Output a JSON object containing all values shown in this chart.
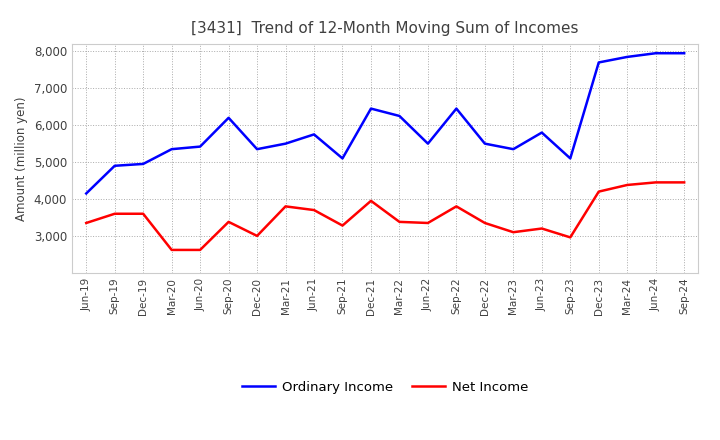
{
  "title": "[3431]  Trend of 12-Month Moving Sum of Incomes",
  "ylabel": "Amount (million yen)",
  "x_labels": [
    "Jun-19",
    "Sep-19",
    "Dec-19",
    "Mar-20",
    "Jun-20",
    "Sep-20",
    "Dec-20",
    "Mar-21",
    "Jun-21",
    "Sep-21",
    "Dec-21",
    "Mar-22",
    "Jun-22",
    "Sep-22",
    "Dec-22",
    "Mar-23",
    "Jun-23",
    "Sep-23",
    "Dec-23",
    "Mar-24",
    "Jun-24",
    "Sep-24"
  ],
  "ordinary_income": [
    4150,
    4900,
    4950,
    5350,
    5420,
    6200,
    5350,
    5500,
    5750,
    5100,
    6450,
    6250,
    5500,
    6450,
    5500,
    5350,
    5800,
    5100,
    7700,
    7850,
    7950,
    7950
  ],
  "net_income": [
    3350,
    3600,
    3600,
    2620,
    2620,
    3380,
    3000,
    3800,
    3700,
    3280,
    3950,
    3380,
    3350,
    3800,
    3350,
    3100,
    3200,
    2960,
    4200,
    4380,
    4450,
    4450
  ],
  "ordinary_color": "#0000ff",
  "net_color": "#ff0000",
  "ylim_min": 2000,
  "ylim_max": 8200,
  "yticks": [
    3000,
    4000,
    5000,
    6000,
    7000,
    8000
  ],
  "title_color": "#404040",
  "background_color": "#ffffff",
  "grid_color": "#aaaaaa",
  "tick_color": "#404040"
}
